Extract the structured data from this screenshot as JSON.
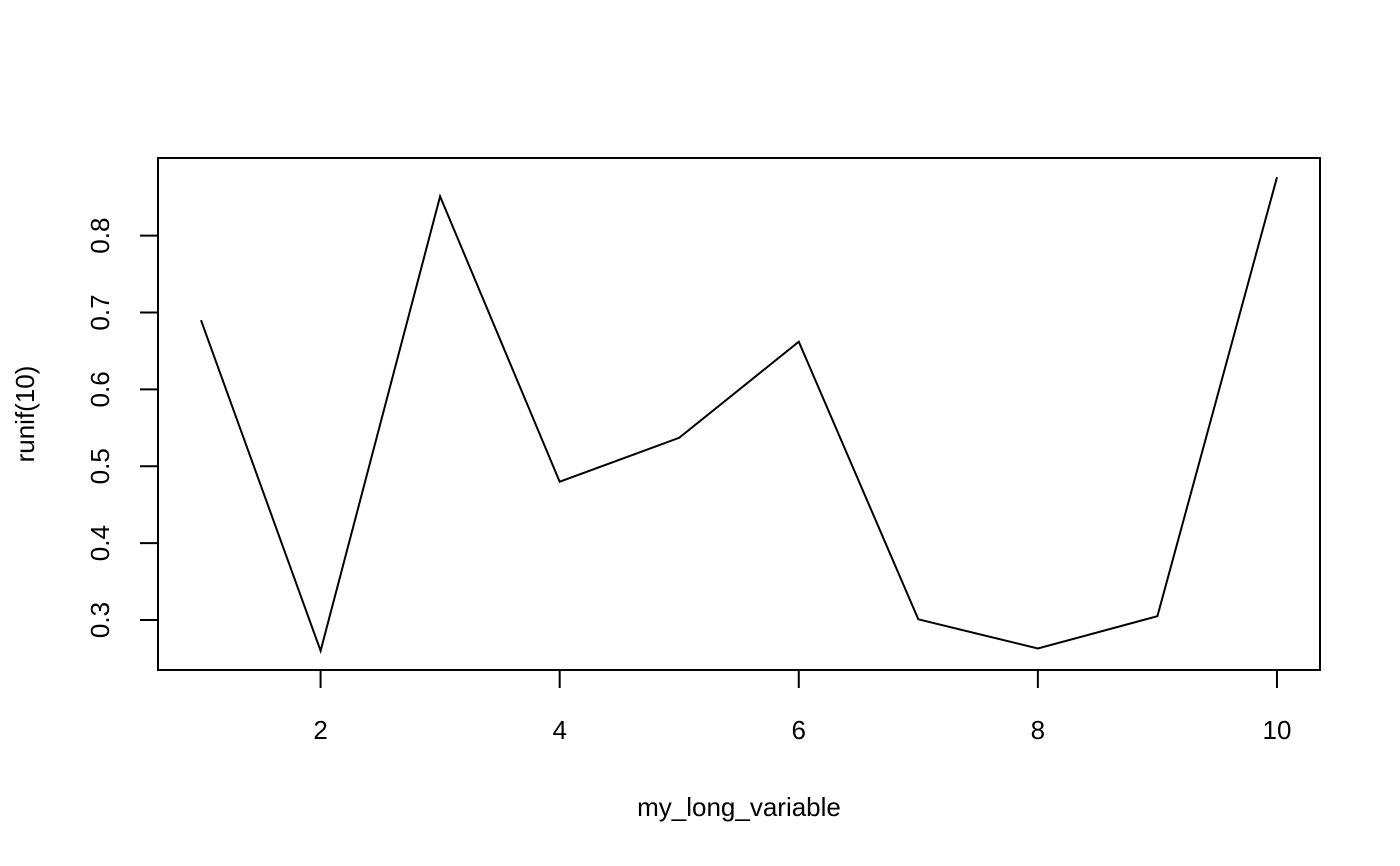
{
  "chart_data": {
    "type": "line",
    "title": "",
    "xlabel": "my_long_variable",
    "ylabel": "runif(10)",
    "x": [
      1,
      2,
      3,
      4,
      5,
      6,
      7,
      8,
      9,
      10
    ],
    "series": [
      {
        "values": [
          0.69,
          0.26,
          0.851,
          0.48,
          0.537,
          0.662,
          0.301,
          0.263,
          0.305,
          0.876
        ]
      }
    ],
    "xlim": [
      0.64,
      10.36
    ],
    "ylim": [
      0.235,
      0.901
    ],
    "xticks": [
      2,
      4,
      6,
      8,
      10
    ],
    "xtick_labels": [
      "2",
      "4",
      "6",
      "8",
      "10"
    ],
    "yticks": [
      0.3,
      0.4,
      0.5,
      0.6,
      0.7,
      0.8
    ],
    "ytick_labels": [
      "0.3",
      "0.4",
      "0.5",
      "0.6",
      "0.7",
      "0.8"
    ],
    "grid": false,
    "legend": "none",
    "line_color": "#000000"
  }
}
